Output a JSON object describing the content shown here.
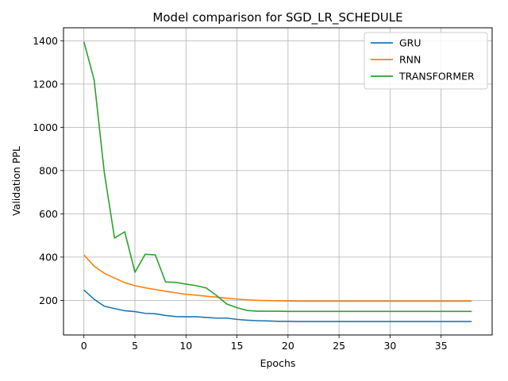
{
  "chart_data": {
    "type": "line",
    "title": "Model comparison for SGD_LR_SCHEDULE",
    "xlabel": "Epochs",
    "ylabel": "Validation PPL",
    "xlim": [
      -2,
      40
    ],
    "ylim": [
      40,
      1460
    ],
    "xticks": [
      0,
      5,
      10,
      15,
      20,
      25,
      30,
      35
    ],
    "yticks": [
      200,
      400,
      600,
      800,
      1000,
      1200,
      1400
    ],
    "grid": true,
    "legend_position": "top-right",
    "x": [
      0,
      1,
      2,
      3,
      4,
      5,
      6,
      7,
      8,
      9,
      10,
      11,
      12,
      13,
      14,
      15,
      16,
      17,
      18,
      19,
      20,
      21,
      22,
      23,
      24,
      25,
      26,
      27,
      28,
      29,
      30,
      31,
      32,
      33,
      34,
      35,
      36,
      37,
      38
    ],
    "series": [
      {
        "name": "GRU",
        "color": "#1f77b4",
        "values": [
          248,
          205,
          173,
          162,
          152,
          148,
          140,
          138,
          130,
          125,
          124,
          124,
          121,
          118,
          118,
          112,
          108,
          106,
          105,
          103,
          103,
          102,
          102,
          102,
          102,
          102,
          102,
          102,
          102,
          102,
          102,
          102,
          102,
          102,
          102,
          102,
          102,
          102,
          102
        ]
      },
      {
        "name": "RNN",
        "color": "#ff7f0e",
        "values": [
          410,
          358,
          325,
          303,
          282,
          268,
          258,
          250,
          242,
          235,
          228,
          224,
          219,
          215,
          210,
          206,
          202,
          200,
          199,
          198,
          197,
          196,
          196,
          196,
          196,
          196,
          196,
          196,
          196,
          196,
          196,
          196,
          196,
          196,
          196,
          196,
          196,
          196,
          196
        ]
      },
      {
        "name": "TRANSFORMER",
        "color": "#2ca02c",
        "values": [
          1395,
          1220,
          790,
          488,
          517,
          330,
          413,
          410,
          285,
          283,
          275,
          268,
          257,
          222,
          183,
          166,
          153,
          150,
          150,
          150,
          149,
          149,
          149,
          149,
          149,
          149,
          149,
          149,
          149,
          149,
          149,
          149,
          149,
          149,
          149,
          149,
          149,
          149,
          149
        ]
      }
    ]
  }
}
